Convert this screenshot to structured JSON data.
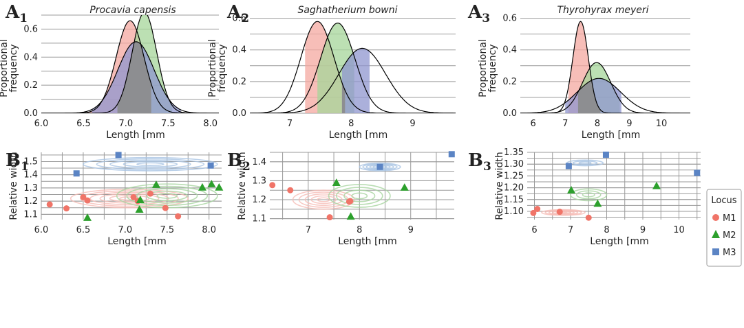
{
  "colors": {
    "M1": "#f07468",
    "M2": "#2ca02c",
    "M3": "#5b84c4",
    "M1_fill": "#f4a8a0",
    "M2_fill": "#a6d69a",
    "M3_fill": "#8f95cf",
    "overlap_fill": "#8c8c8c",
    "grid": "#999999"
  },
  "legend": {
    "title": "Locus",
    "entries": [
      {
        "key": "M1",
        "label": "M1",
        "marker": "circle"
      },
      {
        "key": "M2",
        "label": "M2",
        "marker": "triangle"
      },
      {
        "key": "M3",
        "label": "M3",
        "marker": "square"
      }
    ]
  },
  "chart_data": [
    {
      "id": "A1",
      "panel_letter": "A",
      "panel_sub": "1",
      "type": "area",
      "title": "Procavia capensis",
      "xlabel": "Length [mm",
      "ylabel": "Proportional frequency",
      "xlim": [
        6.0,
        8.1
      ],
      "ylim": [
        0,
        0.7
      ],
      "xticks": [
        6.0,
        6.5,
        7.0,
        7.5,
        8.0
      ],
      "xticklabels": [
        "6.0",
        "6.5",
        "7.0",
        "7.5",
        "8.0"
      ],
      "yticks": [
        0,
        0.2,
        0.4,
        0.6
      ],
      "yticklabels": [
        "0.0",
        "0.2",
        "0.4",
        "0.6"
      ],
      "grid": "horizontal",
      "series": [
        {
          "name": "M1",
          "mean": 7.05,
          "sd": 0.165,
          "peak": 0.66,
          "shade": [
            6.2,
            7.3
          ]
        },
        {
          "name": "M2",
          "mean": 7.22,
          "sd": 0.145,
          "peak": 0.72,
          "shade": [
            6.9,
            7.55
          ]
        },
        {
          "name": "M3",
          "mean": 7.12,
          "sd": 0.215,
          "peak": 0.51,
          "shade": [
            6.6,
            7.65
          ]
        }
      ]
    },
    {
      "id": "A2",
      "panel_letter": "A",
      "panel_sub": "2",
      "type": "area",
      "title": "Saghatherium bowni",
      "xlabel": "Length [mm",
      "ylabel": "Proportional frequency",
      "xlim": [
        6.35,
        9.7
      ],
      "ylim": [
        0,
        0.62
      ],
      "xticks": [
        7,
        8,
        9
      ],
      "xticklabels": [
        "7",
        "8",
        "9"
      ],
      "yticks": [
        0,
        0.2,
        0.4,
        0.6
      ],
      "yticklabels": [
        "0.0",
        "0.2",
        "0.4",
        "0.6"
      ],
      "grid": "horizontal",
      "series": [
        {
          "name": "M1",
          "mean": 7.45,
          "sd": 0.27,
          "peak": 0.58,
          "shade": [
            7.25,
            7.9
          ]
        },
        {
          "name": "M2",
          "mean": 7.78,
          "sd": 0.28,
          "peak": 0.57,
          "shade": [
            7.45,
            8.05
          ]
        },
        {
          "name": "M3",
          "mean": 8.18,
          "sd": 0.38,
          "peak": 0.41,
          "shade": [
            7.85,
            8.3
          ]
        }
      ]
    },
    {
      "id": "A3",
      "panel_letter": "A",
      "panel_sub": "3",
      "type": "area",
      "title": "Thyrohyrax meyeri",
      "xlabel": "Length [mm",
      "ylabel": "Proportional frequency",
      "xlim": [
        5.6,
        10.9
      ],
      "ylim": [
        0,
        0.62
      ],
      "xticks": [
        6,
        7,
        8,
        9,
        10
      ],
      "xticklabels": [
        "6",
        "7",
        "8",
        "9",
        "10"
      ],
      "yticks": [
        0,
        0.2,
        0.4,
        0.6
      ],
      "yticklabels": [
        "0.0",
        "0.2",
        "0.4",
        "0.6"
      ],
      "grid": "horizontal",
      "series": [
        {
          "name": "M1",
          "mean": 7.48,
          "sd": 0.24,
          "peak": 0.58,
          "shade": [
            7.1,
            8.1
          ]
        },
        {
          "name": "M2",
          "mean": 7.98,
          "sd": 0.44,
          "peak": 0.32,
          "shade": [
            7.4,
            8.7
          ]
        },
        {
          "name": "M3",
          "mean": 8.05,
          "sd": 0.68,
          "peak": 0.22,
          "shade": [
            7.0,
            8.75
          ]
        }
      ]
    },
    {
      "id": "B1",
      "panel_letter": "B",
      "panel_sub": "1",
      "type": "scatter",
      "xlabel": "Length [mm",
      "ylabel": "Relative width",
      "xlim": [
        6.0,
        8.15
      ],
      "ylim": [
        1.06,
        1.57
      ],
      "xticks": [
        6.0,
        6.5,
        7.0,
        7.5,
        8.0
      ],
      "xticklabels": [
        "6.0",
        "6.5",
        "7.0",
        "7.5",
        "8.0"
      ],
      "yticks": [
        1.1,
        1.2,
        1.3,
        1.4,
        1.5
      ],
      "yticklabels": [
        "1.1",
        "1.2",
        "1.3",
        "1.4",
        "1.5"
      ],
      "grid": "both",
      "series": [
        {
          "name": "M1",
          "points": [
            [
              6.1,
              1.175
            ],
            [
              6.3,
              1.145
            ],
            [
              6.5,
              1.23
            ],
            [
              6.55,
              1.205
            ],
            [
              7.1,
              1.23
            ],
            [
              7.3,
              1.257
            ],
            [
              7.48,
              1.148
            ],
            [
              7.63,
              1.085
            ],
            [
              7.15,
              1.2
            ]
          ]
        },
        {
          "name": "M2",
          "points": [
            [
              6.55,
              1.075
            ],
            [
              7.17,
              1.137
            ],
            [
              7.18,
              1.21
            ],
            [
              7.37,
              1.325
            ],
            [
              7.92,
              1.305
            ],
            [
              8.03,
              1.33
            ],
            [
              8.12,
              1.305
            ]
          ]
        },
        {
          "name": "M3",
          "points": [
            [
              6.42,
              1.41
            ],
            [
              6.92,
              1.55
            ],
            [
              8.02,
              1.47
            ]
          ]
        }
      ],
      "density_contours": [
        {
          "name": "M1",
          "cx": 7.05,
          "cy": 1.22,
          "sx": 0.7,
          "sy": 0.07,
          "levels": 6
        },
        {
          "name": "M2",
          "cx": 7.5,
          "cy": 1.24,
          "sx": 0.6,
          "sy": 0.09,
          "levels": 5
        },
        {
          "name": "M3",
          "cx": 7.3,
          "cy": 1.48,
          "sx": 0.8,
          "sy": 0.05,
          "levels": 5
        }
      ]
    },
    {
      "id": "B2",
      "panel_letter": "B",
      "panel_sub": "2",
      "type": "scatter",
      "xlabel": "Length [mm",
      "ylabel": "Relative width",
      "xlim": [
        6.25,
        9.85
      ],
      "ylim": [
        1.095,
        1.45
      ],
      "xticks": [
        7,
        8,
        9
      ],
      "xticklabels": [
        "7",
        "8",
        "9"
      ],
      "yticks": [
        1.1,
        1.2,
        1.3,
        1.4
      ],
      "yticklabels": [
        "1.1",
        "1.2",
        "1.3",
        "1.4"
      ],
      "grid": "both",
      "series": [
        {
          "name": "M1",
          "points": [
            [
              6.3,
              1.277
            ],
            [
              6.65,
              1.25
            ],
            [
              7.42,
              1.107
            ],
            [
              7.8,
              1.19
            ],
            [
              7.82,
              1.193
            ]
          ]
        },
        {
          "name": "M2",
          "points": [
            [
              7.55,
              1.29
            ],
            [
              7.83,
              1.112
            ],
            [
              8.88,
              1.265
            ]
          ]
        },
        {
          "name": "M3",
          "points": [
            [
              8.4,
              1.373
            ],
            [
              9.8,
              1.44
            ]
          ]
        }
      ],
      "density_contours": [
        {
          "name": "M1",
          "cx": 7.3,
          "cy": 1.2,
          "sx": 0.6,
          "sy": 0.05,
          "levels": 5
        },
        {
          "name": "M2",
          "cx": 8.0,
          "cy": 1.22,
          "sx": 0.6,
          "sy": 0.06,
          "levels": 4
        },
        {
          "name": "M3",
          "cx": 8.4,
          "cy": 1.373,
          "sx": 0.4,
          "sy": 0.02,
          "levels": 6
        }
      ]
    },
    {
      "id": "B3",
      "panel_letter": "B",
      "panel_sub": "3",
      "type": "scatter",
      "xlabel": "Length [mm",
      "ylabel": "Relative width",
      "xlim": [
        5.8,
        10.6
      ],
      "ylim": [
        1.065,
        1.35
      ],
      "xticks": [
        6,
        7,
        8,
        9,
        10
      ],
      "xticklabels": [
        "6",
        "7",
        "8",
        "9",
        "10"
      ],
      "yticks": [
        1.1,
        1.15,
        1.2,
        1.25,
        1.3,
        1.35
      ],
      "yticklabels": [
        "1.10",
        "1.15",
        "1.20",
        "1.25",
        "1.30",
        "1.35"
      ],
      "grid": "both",
      "series": [
        {
          "name": "M1",
          "points": [
            [
              5.97,
              1.093
            ],
            [
              6.08,
              1.11
            ],
            [
              6.7,
              1.098
            ],
            [
              7.5,
              1.073
            ]
          ]
        },
        {
          "name": "M2",
          "points": [
            [
              7.02,
              1.19
            ],
            [
              7.75,
              1.133
            ],
            [
              9.38,
              1.208
            ]
          ]
        },
        {
          "name": "M3",
          "points": [
            [
              6.95,
              1.292
            ],
            [
              7.98,
              1.34
            ],
            [
              10.5,
              1.263
            ]
          ]
        }
      ],
      "density_contours": [
        {
          "name": "M1",
          "cx": 6.8,
          "cy": 1.095,
          "sx": 0.6,
          "sy": 0.012,
          "levels": 6
        },
        {
          "name": "M2",
          "cx": 7.5,
          "cy": 1.17,
          "sx": 0.5,
          "sy": 0.025,
          "levels": 3
        },
        {
          "name": "M3",
          "cx": 7.4,
          "cy": 1.305,
          "sx": 0.5,
          "sy": 0.012,
          "levels": 3
        }
      ]
    }
  ]
}
